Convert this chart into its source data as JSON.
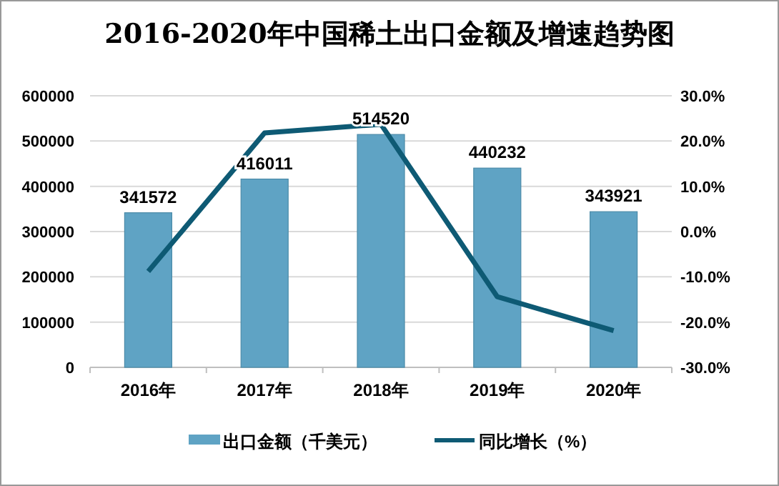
{
  "chart_data": {
    "type": "bar",
    "title": "2016-2020年中国稀土出口金额及增速趋势图",
    "categories": [
      "2016年",
      "2017年",
      "2018年",
      "2019年",
      "2020年"
    ],
    "series": [
      {
        "name": "出口金额（千美元）",
        "color": "#5fa3c4",
        "values": [
          341572,
          416011,
          514520,
          440232,
          343921
        ],
        "data_labels": true
      },
      {
        "name": "同比增长（%）",
        "type": "line",
        "axis": "y2",
        "color": "#0e5a74",
        "values": [
          -8.8,
          21.8,
          23.7,
          -14.4,
          -21.9
        ]
      }
    ],
    "ylim": [
      0,
      600000
    ],
    "yticks": [
      0,
      100000,
      200000,
      300000,
      400000,
      500000,
      600000
    ],
    "y2lim": [
      -30,
      30
    ],
    "y2ticks": [
      {
        "value": -30,
        "label": "-30.0%"
      },
      {
        "value": -20,
        "label": "-20.0%"
      },
      {
        "value": -10,
        "label": "-10.0%"
      },
      {
        "value": 0,
        "label": "0.0%"
      },
      {
        "value": 10,
        "label": "10.0%"
      },
      {
        "value": 20,
        "label": "20.0%"
      },
      {
        "value": 30,
        "label": "30.0%"
      }
    ],
    "grid": "y",
    "legend": "bottom",
    "marker": "none"
  }
}
